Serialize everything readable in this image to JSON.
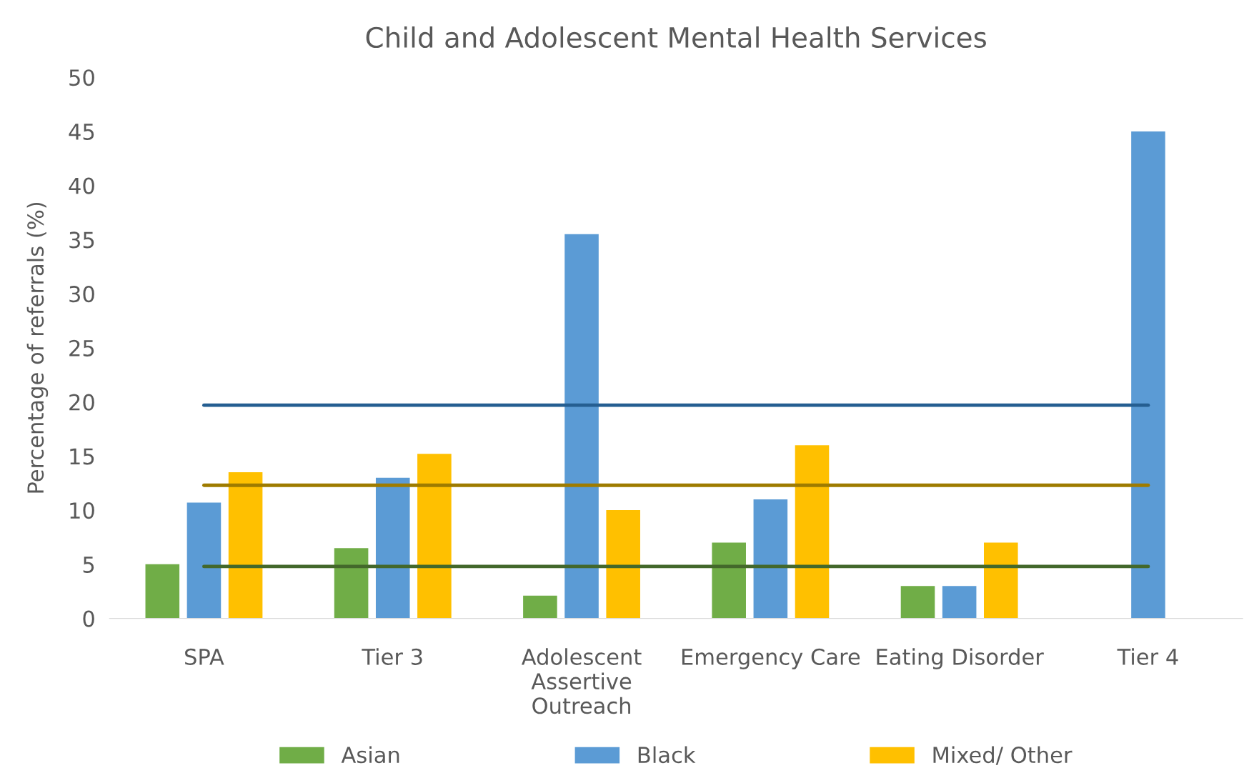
{
  "chart_data": {
    "type": "bar",
    "title": "Child and Adolescent Mental Health Services",
    "ylabel": "Percentage of referrals (%)",
    "categories": [
      "SPA",
      "Tier 3",
      "Adolescent\nAssertive\nOutreach",
      "Emergency Care",
      "Eating Disorder",
      "Tier 4"
    ],
    "series": [
      {
        "name": "Asian",
        "color": "#70ad47",
        "values": [
          5,
          6.5,
          2.1,
          7,
          3,
          null
        ]
      },
      {
        "name": "Black",
        "color": "#5b9bd5",
        "values": [
          10.7,
          13,
          35.5,
          11,
          3,
          45
        ]
      },
      {
        "name": "Mixed/ Other",
        "color": "#ffc000",
        "values": [
          13.5,
          15.2,
          10,
          16,
          7,
          null
        ]
      },
      {
        "type": "line",
        "color": "#255e91",
        "values": [
          19.7,
          19.7,
          19.7,
          19.7,
          19.7,
          19.7
        ]
      },
      {
        "type": "line",
        "color": "#9e7b00",
        "values": [
          12.3,
          12.3,
          12.3,
          12.3,
          12.3,
          12.3
        ]
      },
      {
        "type": "line",
        "color": "#43682b",
        "values": [
          4.8,
          4.8,
          4.8,
          4.8,
          4.8,
          4.8
        ]
      }
    ],
    "ylim": [
      0,
      50
    ],
    "yticks": [
      0,
      5,
      10,
      15,
      20,
      25,
      30,
      35,
      40,
      45,
      50
    ],
    "grid": false,
    "legend": "bottom",
    "marker": "none",
    "line_style": "solid"
  }
}
